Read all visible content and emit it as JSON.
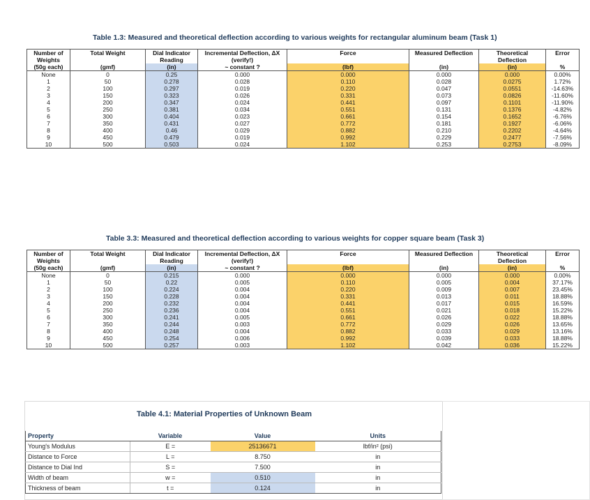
{
  "tables": [
    {
      "title": "Table 1.3: Measured and theoretical deflection according to various weights for rectangular aluminum beam (Task 1)",
      "headers": {
        "row1": [
          "Number of",
          "Total Weight",
          "Dial Indicator",
          "Incremental Deflection, ΔX",
          "Force",
          "Measured Deflection",
          "Theoretical",
          "Error"
        ],
        "row2": [
          "Weights",
          "",
          "Reading",
          "(verify!)",
          "",
          "",
          "Deflection",
          ""
        ],
        "row3": [
          "(50g each)",
          "(gmf)",
          "(in)",
          "~ constant ?",
          "(lbf)",
          "(in)",
          "(in)",
          "%"
        ]
      },
      "rows": [
        [
          "None",
          "0",
          "0.25",
          "0.000",
          "0.000",
          "0.000",
          "0.000",
          "0.00%"
        ],
        [
          "1",
          "50",
          "0.278",
          "0.028",
          "0.110",
          "0.028",
          "0.0275",
          "1.72%"
        ],
        [
          "2",
          "100",
          "0.297",
          "0.019",
          "0.220",
          "0.047",
          "0.0551",
          "-14.63%"
        ],
        [
          "3",
          "150",
          "0.323",
          "0.026",
          "0.331",
          "0.073",
          "0.0826",
          "-11.60%"
        ],
        [
          "4",
          "200",
          "0.347",
          "0.024",
          "0.441",
          "0.097",
          "0.1101",
          "-11.90%"
        ],
        [
          "5",
          "250",
          "0.381",
          "0.034",
          "0.551",
          "0.131",
          "0.1376",
          "-4.82%"
        ],
        [
          "6",
          "300",
          "0.404",
          "0.023",
          "0.661",
          "0.154",
          "0.1652",
          "-6.76%"
        ],
        [
          "7",
          "350",
          "0.431",
          "0.027",
          "0.772",
          "0.181",
          "0.1927",
          "-6.06%"
        ],
        [
          "8",
          "400",
          "0.46",
          "0.029",
          "0.882",
          "0.210",
          "0.2202",
          "-4.64%"
        ],
        [
          "9",
          "450",
          "0.479",
          "0.019",
          "0.992",
          "0.229",
          "0.2477",
          "-7.56%"
        ],
        [
          "10",
          "500",
          "0.503",
          "0.024",
          "1.102",
          "0.253",
          "0.2753",
          "-8.09%"
        ]
      ]
    },
    {
      "title": "Table 3.3: Measured and theoretical deflection according to various weights for copper square beam (Task 3)",
      "headers": {
        "row1": [
          "Number of",
          "Total Weight",
          "Dial Indicator",
          "Incremental Deflection, ΔX",
          "Force",
          "Measured Deflection",
          "Theoretical",
          "Error"
        ],
        "row2": [
          "Weights",
          "",
          "Reading",
          "(verify!)",
          "",
          "",
          "Deflection",
          ""
        ],
        "row3": [
          "(50g each)",
          "(gmf)",
          "(in)",
          "~ constant ?",
          "(lbf)",
          "(in)",
          "(in)",
          "%"
        ]
      },
      "rows": [
        [
          "None",
          "0",
          "0.215",
          "0.000",
          "0.000",
          "0.000",
          "0.000",
          "0.00%"
        ],
        [
          "1",
          "50",
          "0.22",
          "0.005",
          "0.110",
          "0.005",
          "0.004",
          "37.17%"
        ],
        [
          "2",
          "100",
          "0.224",
          "0.004",
          "0.220",
          "0.009",
          "0.007",
          "23.45%"
        ],
        [
          "3",
          "150",
          "0.228",
          "0.004",
          "0.331",
          "0.013",
          "0.011",
          "18.88%"
        ],
        [
          "4",
          "200",
          "0.232",
          "0.004",
          "0.441",
          "0.017",
          "0.015",
          "16.59%"
        ],
        [
          "5",
          "250",
          "0.236",
          "0.004",
          "0.551",
          "0.021",
          "0.018",
          "15.22%"
        ],
        [
          "6",
          "300",
          "0.241",
          "0.005",
          "0.661",
          "0.026",
          "0.022",
          "18.88%"
        ],
        [
          "7",
          "350",
          "0.244",
          "0.003",
          "0.772",
          "0.029",
          "0.026",
          "13.65%"
        ],
        [
          "8",
          "400",
          "0.248",
          "0.004",
          "0.882",
          "0.033",
          "0.029",
          "13.16%"
        ],
        [
          "9",
          "450",
          "0.254",
          "0.006",
          "0.992",
          "0.039",
          "0.033",
          "18.88%"
        ],
        [
          "10",
          "500",
          "0.257",
          "0.003",
          "1.102",
          "0.042",
          "0.036",
          "15.22%"
        ]
      ]
    }
  ],
  "properties": {
    "title": "Table 4.1: Material Properties of Unknown Beam",
    "headers": [
      "Property",
      "Variable",
      "Value",
      "Units"
    ],
    "rows": [
      [
        "Young's Modulus",
        "E =",
        "25136671",
        "lbf/in² (psi)"
      ],
      [
        "Distance to Force",
        "L =",
        "8.750",
        "in"
      ],
      [
        "Distance to Dial Ind",
        "S =",
        "7.500",
        "in"
      ],
      [
        "Width of beam",
        "w =",
        "0.510",
        "in"
      ],
      [
        "Thickness of beam",
        "t =",
        "0.124",
        "in"
      ]
    ]
  },
  "colors": {
    "dial_fill": "#cad9ee",
    "force_fill": "#fbd26a",
    "theory_fill": "#fbd26a",
    "title_color": "#1f3a5a"
  }
}
